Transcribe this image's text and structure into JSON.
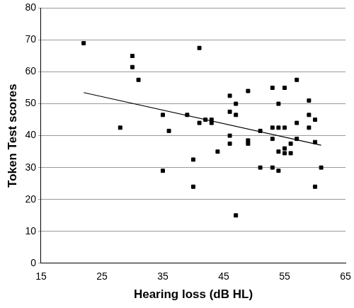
{
  "chart_data": {
    "type": "scatter",
    "x_label": "Hearing loss (dB HL)",
    "y_label": "Token Test scores",
    "xlim": [
      15,
      65
    ],
    "xticks": [
      15,
      25,
      35,
      45,
      55,
      65
    ],
    "ylim": [
      0,
      80
    ],
    "yticks": [
      0,
      10,
      20,
      30,
      40,
      50,
      60,
      70,
      80
    ],
    "grid": true,
    "series": [
      {
        "color": "#000000",
        "marker": "square",
        "x": [
          22,
          28,
          30,
          30,
          31,
          35,
          35,
          36,
          39,
          40,
          40,
          41,
          41,
          42,
          43,
          43,
          44,
          46,
          46,
          46,
          46,
          47,
          47,
          47,
          49,
          49,
          49,
          51,
          51,
          53,
          53,
          53,
          53,
          54,
          54,
          54,
          54,
          55,
          55,
          55,
          55,
          56,
          56,
          57,
          57,
          57,
          59,
          59,
          59,
          60,
          60,
          60,
          61
        ],
        "values": [
          69,
          42.5,
          65,
          61.5,
          57.5,
          46.5,
          29,
          41.5,
          46.5,
          32.5,
          24,
          67.5,
          44,
          45,
          45,
          44,
          35,
          52.5,
          47.5,
          40,
          37.5,
          50,
          46.5,
          15,
          54,
          38.5,
          37.5,
          41.5,
          30,
          55,
          42.5,
          39,
          30,
          42.5,
          35,
          29,
          50,
          42.5,
          34.5,
          36,
          55,
          34.5,
          37.5,
          57.5,
          44,
          39,
          51,
          46.5,
          42.5,
          45,
          38,
          24,
          30
        ]
      },
      {
        "type": "line",
        "color": "#000000",
        "line_style": "solid",
        "x": [
          22,
          61
        ],
        "values": [
          53.5,
          37
        ]
      }
    ]
  }
}
